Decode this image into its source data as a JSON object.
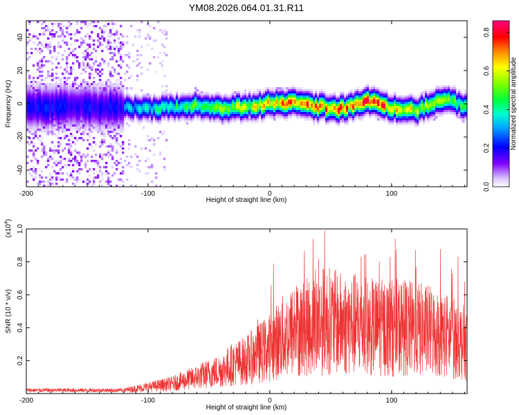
{
  "title": "YM08.2026.064.01.31.R11",
  "chart_data": [
    {
      "type": "heatmap",
      "title": "YM08.2026.064.01.31.R11",
      "xlabel": "Height of straight line (km)",
      "ylabel": "Frequency (Hz)",
      "xlim": [
        -200,
        162
      ],
      "ylim": [
        -50,
        50
      ],
      "xticks": [
        -200,
        -100,
        0,
        100
      ],
      "xtick_labels": [
        "-200",
        "-100",
        "0",
        "100"
      ],
      "yticks": [
        -40,
        -20,
        0,
        20,
        40
      ],
      "ytick_labels": [
        "-40",
        "-20",
        "0",
        "20",
        "40"
      ],
      "colorbar": {
        "label": "Normalized spectral amplitude",
        "range": [
          0.0,
          0.86
        ],
        "ticks": [
          0.0,
          0.2,
          0.4,
          0.6,
          0.8
        ],
        "tick_labels": [
          "0.0",
          "0.2",
          "0.4",
          "0.6",
          "0.8"
        ],
        "colormap": [
          "#ffffff",
          "#c8a6ff",
          "#8000ff",
          "#0000ff",
          "#00e0ff",
          "#00ff80",
          "#80ff00",
          "#ffff00",
          "#ff8000",
          "#ff0000",
          "#ff0080"
        ]
      },
      "ridge_x": [
        -120,
        -100,
        -80,
        -60,
        -40,
        -20,
        0,
        20,
        40,
        60,
        80,
        100,
        120,
        140,
        162
      ],
      "ridge_frequency_hz": [
        -2,
        -3,
        -2,
        -1,
        -3,
        -2,
        0,
        1,
        -2,
        -3,
        2,
        -3,
        -4,
        3,
        -2
      ],
      "ridge_amplitude": [
        0.35,
        0.4,
        0.45,
        0.5,
        0.55,
        0.62,
        0.7,
        0.78,
        0.72,
        0.76,
        0.8,
        0.72,
        0.6,
        0.55,
        0.45
      ]
    },
    {
      "type": "line",
      "xlabel": "Height of straight line (km)",
      "ylabel": "SNR (10 * v/v)",
      "scale_label": "(x10",
      "scale_exponent": "4",
      "xlim": [
        -200,
        162
      ],
      "ylim": [
        0,
        1.0
      ],
      "xticks": [
        -200,
        -100,
        0,
        100
      ],
      "xtick_labels": [
        "-200",
        "-100",
        "0",
        "100"
      ],
      "yticks": [
        0.2,
        0.4,
        0.6,
        0.8,
        1.0
      ],
      "ytick_labels": [
        "0.2",
        "0.4",
        "0.6",
        "0.8",
        "1.0"
      ],
      "series": [
        {
          "name": "SNR",
          "color": "#ee3333",
          "x": [
            -200,
            -180,
            -160,
            -140,
            -120,
            -110,
            -100,
            -90,
            -80,
            -70,
            -60,
            -50,
            -40,
            -30,
            -20,
            -10,
            0,
            10,
            20,
            30,
            40,
            45,
            50,
            60,
            70,
            80,
            90,
            100,
            110,
            120,
            130,
            140,
            150,
            162
          ],
          "values": [
            0.02,
            0.02,
            0.02,
            0.02,
            0.02,
            0.03,
            0.04,
            0.05,
            0.06,
            0.08,
            0.1,
            0.12,
            0.14,
            0.18,
            0.2,
            0.24,
            0.28,
            0.34,
            0.38,
            0.4,
            0.42,
            0.45,
            0.44,
            0.42,
            0.42,
            0.4,
            0.4,
            0.4,
            0.4,
            0.39,
            0.38,
            0.36,
            0.34,
            0.3
          ],
          "peaks": [
            [
              45,
              0.99
            ],
            [
              40,
              0.82
            ],
            [
              75,
              0.83
            ],
            [
              90,
              0.8
            ],
            [
              120,
              0.77
            ],
            [
              150,
              0.73
            ],
            [
              160,
              0.68
            ],
            [
              20,
              0.62
            ],
            [
              -10,
              0.45
            ]
          ]
        }
      ]
    }
  ]
}
